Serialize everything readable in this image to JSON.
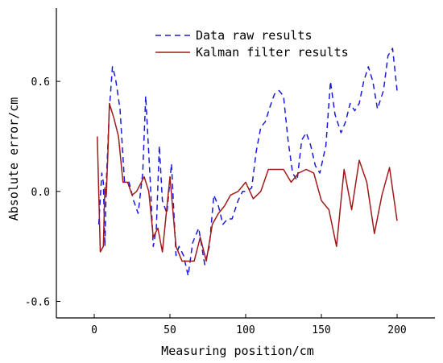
{
  "chart_data": {
    "type": "line",
    "title": "",
    "xlabel": "Measuring position/cm",
    "ylabel": "Absolute error/cm",
    "xlim": [
      -25,
      225
    ],
    "ylim": [
      -0.69,
      1.0
    ],
    "xticks": [
      0,
      50,
      100,
      150,
      200
    ],
    "xtick_labels": [
      "0",
      "50",
      "100",
      "150",
      "200"
    ],
    "yticks": [
      -0.6,
      0.0,
      0.6
    ],
    "ytick_labels": [
      "-0.6",
      "0.0",
      "0.6"
    ],
    "grid": false,
    "legend_position": "top-center",
    "series": [
      {
        "name": "Data raw results",
        "color": "#1a1adb",
        "style": "dashed",
        "x": [
          3,
          5,
          6,
          7,
          8,
          9,
          10,
          12,
          14,
          17,
          20,
          23,
          26,
          29,
          32,
          34,
          37,
          39,
          41,
          43,
          45,
          48,
          51,
          54,
          56,
          59,
          62,
          65,
          69,
          73,
          76,
          79,
          82,
          85,
          88,
          91,
          95,
          98,
          101,
          104,
          107,
          110,
          113,
          116,
          119,
          122,
          125,
          128,
          131,
          134,
          137,
          140,
          143,
          146,
          149,
          153,
          156,
          159,
          163,
          166,
          169,
          172,
          175,
          178,
          181,
          184,
          187,
          191,
          194,
          197,
          200
        ],
        "y": [
          -0.18,
          0.1,
          0.05,
          -0.3,
          0.05,
          0.25,
          0.45,
          0.68,
          0.62,
          0.45,
          0.05,
          0.05,
          -0.05,
          -0.12,
          0.1,
          0.52,
          0.05,
          -0.3,
          -0.2,
          0.25,
          -0.05,
          -0.12,
          0.15,
          -0.35,
          -0.3,
          -0.35,
          -0.46,
          -0.28,
          -0.2,
          -0.4,
          -0.3,
          -0.02,
          -0.08,
          -0.18,
          -0.15,
          -0.15,
          -0.05,
          0.0,
          0.0,
          0.02,
          0.22,
          0.35,
          0.38,
          0.46,
          0.53,
          0.55,
          0.52,
          0.28,
          0.1,
          0.06,
          0.28,
          0.32,
          0.25,
          0.14,
          0.1,
          0.25,
          0.6,
          0.42,
          0.32,
          0.38,
          0.48,
          0.44,
          0.48,
          0.6,
          0.68,
          0.6,
          0.45,
          0.55,
          0.74,
          0.78,
          0.55
        ]
      },
      {
        "name": "Kalman filter results",
        "color": "#a01a1a",
        "style": "solid",
        "x": [
          2,
          4,
          6,
          7,
          8,
          9,
          10,
          13,
          16,
          19,
          22,
          25,
          28,
          33,
          36,
          39,
          42,
          45,
          50,
          54,
          58,
          62,
          66,
          70,
          74,
          78,
          82,
          86,
          90,
          95,
          100,
          105,
          110,
          115,
          120,
          125,
          130,
          135,
          140,
          145,
          150,
          155,
          160,
          165,
          170,
          175,
          180,
          185,
          190,
          195,
          200
        ],
        "y": [
          0.3,
          -0.33,
          -0.3,
          0.02,
          -0.02,
          0.2,
          0.48,
          0.4,
          0.3,
          0.05,
          0.05,
          -0.02,
          0.0,
          0.08,
          0.0,
          -0.25,
          -0.2,
          -0.33,
          0.08,
          -0.3,
          -0.38,
          -0.38,
          -0.38,
          -0.25,
          -0.38,
          -0.18,
          -0.12,
          -0.08,
          -0.02,
          0.0,
          0.05,
          -0.04,
          0.0,
          0.12,
          0.12,
          0.12,
          0.05,
          0.1,
          0.12,
          0.1,
          -0.05,
          -0.1,
          -0.3,
          0.12,
          -0.1,
          0.17,
          0.05,
          -0.23,
          -0.02,
          0.13,
          -0.16
        ]
      }
    ]
  }
}
